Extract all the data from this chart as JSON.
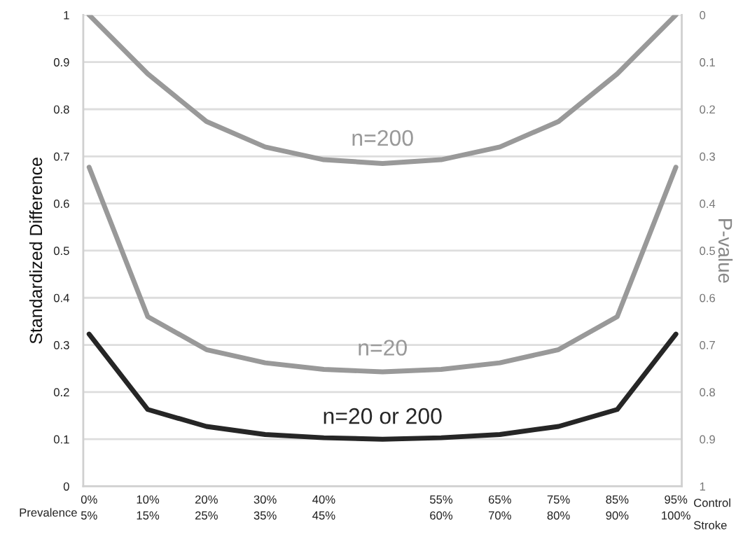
{
  "chart_data": {
    "type": "line",
    "ylabel": "Standardized Difference",
    "y2label": "P-value",
    "categories": [
      "0%\n5%",
      "10%\n15%",
      "20%\n25%",
      "30%\n35%",
      "40%\n45%",
      null,
      "55%\n60%",
      "65%\n70%",
      "75%\n80%",
      "85%\n90%",
      "95%\n100%"
    ],
    "ylim": [
      0,
      1
    ],
    "yticks": [
      0,
      0.1,
      0.2,
      0.3,
      0.4,
      0.5,
      0.6,
      0.7,
      0.8,
      0.9,
      1
    ],
    "y2lim": [
      1,
      0
    ],
    "y2ticks": [
      0,
      0.1,
      0.2,
      0.3,
      0.4,
      0.5,
      0.6,
      0.7,
      0.8,
      0.9,
      1
    ],
    "grid": "y",
    "marker": "none",
    "line_style": "solid",
    "series": [
      {
        "color": "#999999",
        "values": [
          1.0,
          0.875,
          0.774,
          0.72,
          0.693,
          0.685,
          0.693,
          0.72,
          0.774,
          0.875,
          1.0
        ]
      },
      {
        "color": "#999999",
        "values": [
          0.677,
          0.36,
          0.29,
          0.262,
          0.248,
          0.243,
          0.248,
          0.262,
          0.29,
          0.36,
          0.677
        ]
      },
      {
        "color": "#262626",
        "values": [
          0.323,
          0.163,
          0.127,
          0.11,
          0.103,
          0.1,
          0.103,
          0.11,
          0.127,
          0.163,
          0.323
        ]
      }
    ],
    "annotations": [
      "n=200",
      "n=20",
      "n=20 or 200",
      "Prevalence",
      "Control",
      "Stroke"
    ]
  }
}
